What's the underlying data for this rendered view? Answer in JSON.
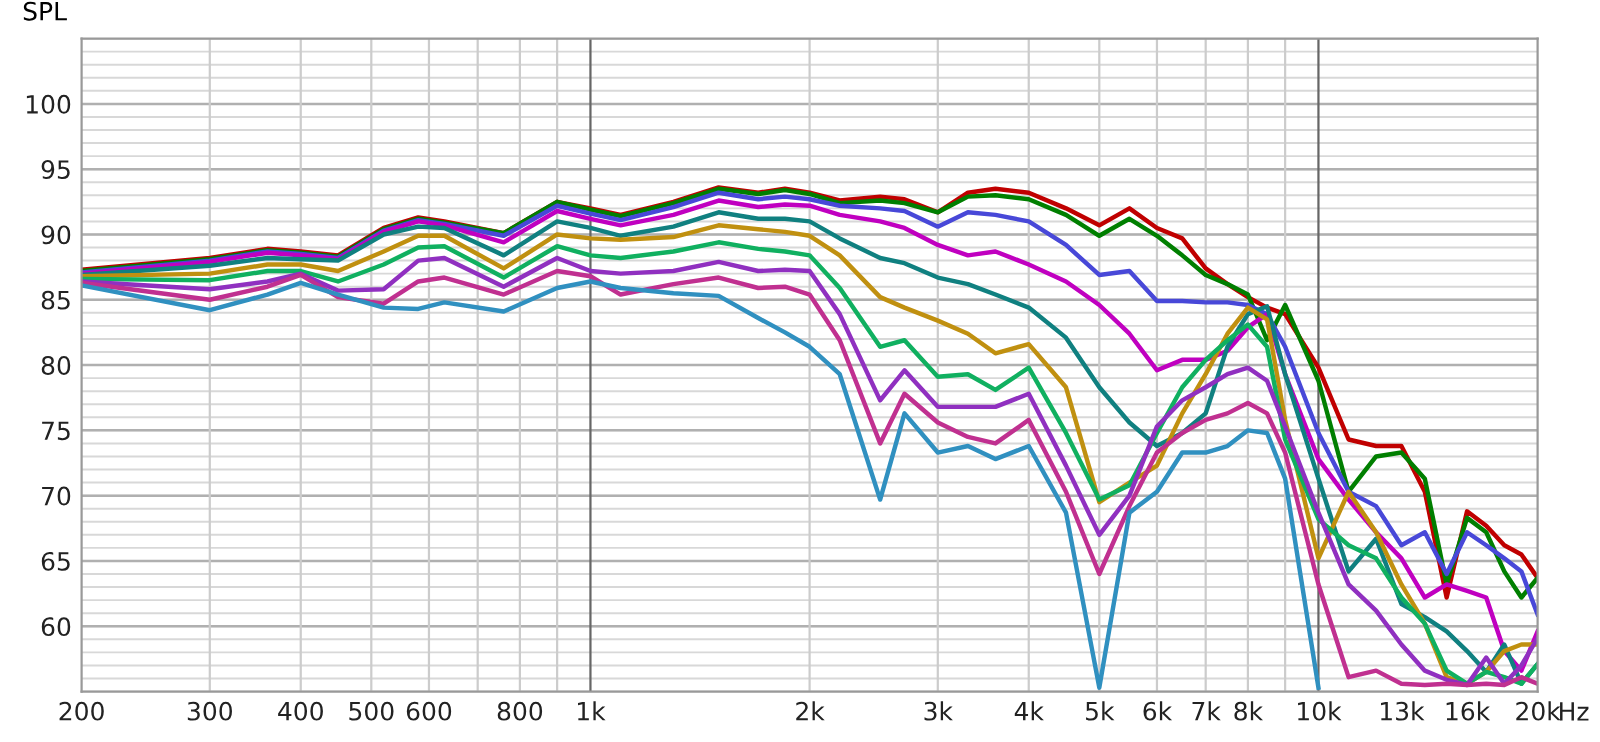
{
  "chart_data": {
    "type": "line",
    "ylabel": "SPL",
    "xlabel": "Hz",
    "log": "x",
    "grid": true,
    "marker": "none",
    "line_style": "solid",
    "xlim": [
      200,
      20000
    ],
    "ylim": [
      55,
      105
    ],
    "xticks": [
      200,
      300,
      400,
      500,
      600,
      800,
      {
        "value": 1000,
        "label": "1k"
      },
      {
        "value": 2000,
        "label": "2k"
      },
      {
        "value": 3000,
        "label": "3k"
      },
      {
        "value": 4000,
        "label": "4k"
      },
      {
        "value": 5000,
        "label": "5k"
      },
      {
        "value": 6000,
        "label": "6k"
      },
      {
        "value": 7000,
        "label": "7k"
      },
      {
        "value": 8000,
        "label": "8k"
      },
      {
        "value": 10000,
        "label": "10k"
      },
      {
        "value": 13000,
        "label": "13k"
      },
      {
        "value": 16000,
        "label": "16k"
      },
      {
        "value": 20000,
        "label": "20k"
      }
    ],
    "yticks": [
      60,
      65,
      70,
      75,
      80,
      85,
      90,
      95,
      100
    ],
    "x": [
      200,
      300,
      360,
      400,
      450,
      520,
      580,
      630,
      760,
      900,
      1000,
      1100,
      1300,
      1500,
      1700,
      1850,
      2000,
      2200,
      2500,
      2700,
      3000,
      3300,
      3600,
      4000,
      4500,
      5000,
      5500,
      6000,
      6500,
      7000,
      7500,
      8000,
      8500,
      9000,
      10000,
      11000,
      12000,
      13000,
      14000,
      15000,
      16000,
      17000,
      18000,
      19000,
      20000
    ],
    "series": [
      {
        "color": "#c00000",
        "values": [
          87.3,
          88.2,
          88.9,
          88.7,
          88.4,
          90.5,
          91.3,
          91.0,
          90.1,
          92.5,
          92.0,
          91.5,
          92.5,
          93.6,
          93.2,
          93.5,
          93.2,
          92.6,
          92.9,
          92.7,
          91.7,
          93.2,
          93.5,
          93.2,
          92.0,
          90.7,
          92.0,
          90.5,
          89.7,
          87.4,
          86.2,
          85.2,
          84.4,
          83.9,
          79.8,
          74.3,
          73.8,
          73.8,
          70.3,
          62.2,
          68.8,
          67.7,
          66.2,
          65.5,
          63.7
        ]
      },
      {
        "color": "#007f00",
        "values": [
          87.2,
          88.1,
          88.8,
          88.6,
          88.3,
          90.4,
          91.2,
          90.9,
          90.1,
          92.5,
          91.9,
          91.4,
          92.4,
          93.5,
          93.1,
          93.4,
          93.1,
          92.4,
          92.6,
          92.4,
          91.7,
          92.9,
          93.0,
          92.7,
          91.5,
          89.9,
          91.2,
          89.9,
          88.4,
          86.9,
          86.2,
          85.4,
          81.9,
          84.6,
          78.8,
          70.3,
          73.0,
          73.3,
          71.3,
          63.2,
          68.3,
          67.2,
          64.2,
          62.2,
          63.7
        ]
      },
      {
        "color": "#4848d8",
        "values": [
          87.1,
          88.0,
          88.7,
          88.5,
          88.2,
          90.3,
          91.1,
          90.8,
          89.9,
          92.2,
          91.6,
          91.1,
          92.1,
          93.2,
          92.7,
          92.9,
          92.7,
          92.2,
          92.0,
          91.8,
          90.6,
          91.7,
          91.5,
          91.0,
          89.2,
          86.9,
          87.2,
          84.9,
          84.9,
          84.8,
          84.8,
          84.6,
          83.9,
          81.4,
          74.8,
          70.3,
          69.2,
          66.2,
          67.2,
          64.0,
          67.2,
          66.2,
          65.2,
          64.2,
          60.9
        ]
      },
      {
        "color": "#c000c0",
        "values": [
          87.0,
          87.9,
          88.6,
          88.4,
          88.1,
          90.2,
          91.0,
          90.7,
          89.4,
          91.8,
          91.2,
          90.7,
          91.5,
          92.6,
          92.1,
          92.3,
          92.2,
          91.5,
          91.0,
          90.5,
          89.2,
          88.4,
          88.7,
          87.7,
          86.4,
          84.6,
          82.4,
          79.6,
          80.4,
          80.4,
          81.1,
          82.9,
          83.9,
          79.3,
          72.8,
          69.7,
          67.2,
          65.2,
          62.2,
          63.2,
          62.7,
          62.2,
          58.1,
          56.6,
          59.6
        ]
      },
      {
        "color": "#108080",
        "values": [
          86.9,
          87.6,
          88.2,
          88.1,
          88.0,
          90.0,
          90.6,
          90.5,
          88.4,
          91.0,
          90.5,
          89.9,
          90.6,
          91.7,
          91.2,
          91.2,
          91.0,
          89.7,
          88.2,
          87.8,
          86.7,
          86.2,
          85.4,
          84.4,
          82.1,
          78.3,
          75.6,
          73.8,
          74.8,
          76.3,
          81.4,
          83.9,
          84.5,
          79.3,
          71.3,
          64.2,
          66.7,
          61.7,
          60.7,
          59.6,
          58.1,
          56.5,
          58.6,
          55.6,
          57.1
        ]
      },
      {
        "color": "#c09010",
        "values": [
          86.8,
          87.0,
          87.7,
          87.7,
          87.2,
          88.7,
          89.9,
          89.9,
          87.4,
          90.0,
          89.7,
          89.6,
          89.8,
          90.7,
          90.4,
          90.2,
          89.9,
          88.4,
          85.2,
          84.4,
          83.4,
          82.4,
          80.9,
          81.6,
          78.3,
          69.5,
          71.0,
          72.3,
          76.3,
          79.3,
          82.4,
          84.4,
          83.5,
          75.8,
          65.2,
          70.3,
          67.2,
          63.2,
          60.2,
          56.1,
          55.6,
          56.5,
          58.1,
          58.6,
          58.6
        ]
      },
      {
        "color": "#10b060",
        "values": [
          86.6,
          86.5,
          87.2,
          87.2,
          86.4,
          87.7,
          89.0,
          89.1,
          86.7,
          89.1,
          88.4,
          88.2,
          88.7,
          89.4,
          88.9,
          88.7,
          88.4,
          85.9,
          81.4,
          81.9,
          79.1,
          79.3,
          78.1,
          79.8,
          74.8,
          69.7,
          70.8,
          74.8,
          78.3,
          80.4,
          81.9,
          83.1,
          81.4,
          74.3,
          68.2,
          66.2,
          65.2,
          62.2,
          60.2,
          56.6,
          55.6,
          56.5,
          56.1,
          55.6,
          57.1
        ]
      },
      {
        "color": "#9030c0",
        "values": [
          86.4,
          85.8,
          86.4,
          87.0,
          85.7,
          85.8,
          88.0,
          88.2,
          86.0,
          88.2,
          87.2,
          87.0,
          87.2,
          87.9,
          87.2,
          87.3,
          87.2,
          83.9,
          77.3,
          79.6,
          76.8,
          76.8,
          76.8,
          77.8,
          72.3,
          67.0,
          70.0,
          75.3,
          77.3,
          78.3,
          79.3,
          79.8,
          78.8,
          75.3,
          68.7,
          63.2,
          61.2,
          58.6,
          56.6,
          55.9,
          55.5,
          57.6,
          55.6,
          57.0,
          59.1
        ]
      },
      {
        "color": "#c03090",
        "values": [
          86.3,
          85.0,
          86.0,
          86.9,
          85.2,
          84.7,
          86.4,
          86.7,
          85.4,
          87.2,
          86.8,
          85.4,
          86.2,
          86.7,
          85.9,
          86.0,
          85.4,
          81.9,
          74.0,
          77.8,
          75.6,
          74.5,
          74.0,
          75.8,
          70.3,
          64.0,
          69.2,
          73.3,
          74.8,
          75.8,
          76.3,
          77.1,
          76.3,
          73.3,
          63.2,
          56.1,
          56.6,
          55.6,
          55.5,
          55.6,
          55.5,
          55.6,
          55.5,
          56.1,
          55.6
        ]
      },
      {
        "color": "#3090c0",
        "values": [
          86.1,
          84.2,
          85.4,
          86.3,
          85.4,
          84.4,
          84.3,
          84.8,
          84.1,
          85.9,
          86.4,
          85.9,
          85.5,
          85.3,
          83.6,
          82.5,
          81.4,
          79.3,
          69.7,
          76.3,
          73.3,
          73.8,
          72.8,
          73.8,
          68.7,
          55.3,
          68.7,
          70.3,
          73.3,
          73.3,
          73.8,
          75.0,
          74.8,
          71.3,
          55.3,
          null,
          null,
          null,
          null,
          null,
          null,
          null,
          null,
          null,
          null
        ]
      }
    ]
  }
}
